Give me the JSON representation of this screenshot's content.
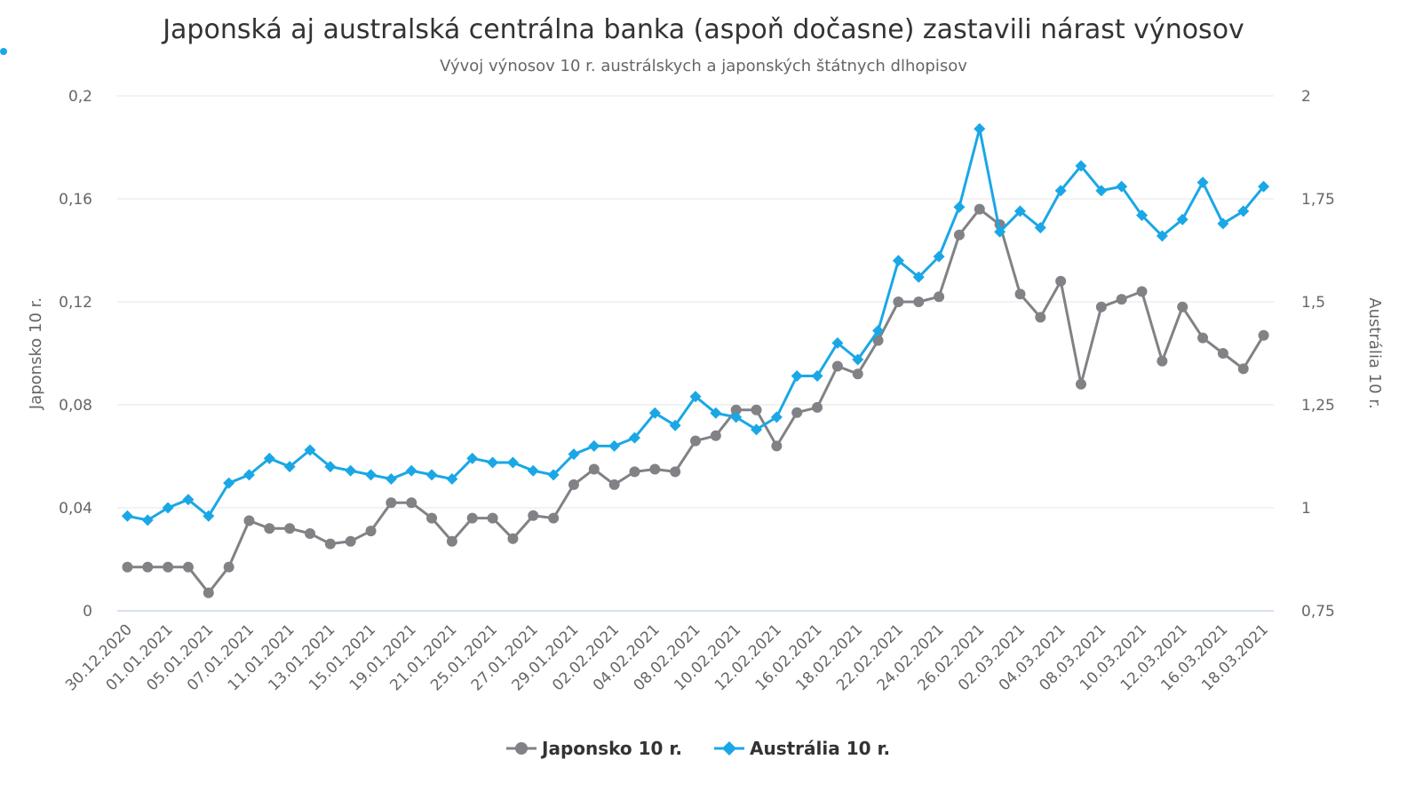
{
  "chart_data": {
    "type": "line",
    "title": "Japonská aj australská centrálna banka (aspoň dočasne) zastavili nárast výnosov",
    "subtitle": "Vývoj výnosov 10 r. austrálskych a japonských štátnych dlhopisov",
    "y_left": {
      "label": "Japonsko 10 r.",
      "range": [
        0,
        0.2
      ],
      "ticks": [
        0,
        0.04,
        0.08,
        0.12,
        0.16,
        0.2
      ],
      "tick_labels": [
        "0",
        "0,04",
        "0,08",
        "0,12",
        "0,16",
        "0,2"
      ]
    },
    "y_right": {
      "label": "Austrália 10 r.",
      "range": [
        0.75,
        2
      ],
      "ticks": [
        0.75,
        1,
        1.25,
        1.5,
        1.75,
        2
      ],
      "tick_labels": [
        "0,75",
        "1",
        "1,25",
        "1,5",
        "1,75",
        "2"
      ]
    },
    "x_tick_labels": [
      "30.12.2020",
      "01.01.2021",
      "05.01.2021",
      "07.01.2021",
      "11.01.2021",
      "13.01.2021",
      "15.01.2021",
      "19.01.2021",
      "21.01.2021",
      "25.01.2021",
      "27.01.2021",
      "29.01.2021",
      "02.02.2021",
      "04.02.2021",
      "08.02.2021",
      "10.02.2021",
      "12.02.2021",
      "16.02.2021",
      "18.02.2021",
      "22.02.2021",
      "24.02.2021",
      "26.02.2021",
      "02.03.2021",
      "04.03.2021",
      "08.03.2021",
      "10.03.2021",
      "12.03.2021",
      "16.03.2021",
      "18.03.2021"
    ],
    "grid": true,
    "legend_position": "bottom-center",
    "series": [
      {
        "name": "Japonsko 10 r.",
        "axis": "left",
        "color": "#808285",
        "marker": "circle",
        "values": [
          0.017,
          0.017,
          0.017,
          0.017,
          0.007,
          0.017,
          0.035,
          0.032,
          0.032,
          0.03,
          0.026,
          0.027,
          0.031,
          0.042,
          0.042,
          0.036,
          0.027,
          0.036,
          0.036,
          0.028,
          0.037,
          0.036,
          0.049,
          0.055,
          0.049,
          0.054,
          0.055,
          0.054,
          0.066,
          0.068,
          0.078,
          0.078,
          0.064,
          0.077,
          0.079,
          0.095,
          0.092,
          0.105,
          0.12,
          0.12,
          0.122,
          0.146,
          0.156,
          0.15,
          0.123,
          0.114,
          0.128,
          0.088,
          0.118,
          0.121,
          0.124,
          0.097,
          0.118,
          0.106,
          0.1,
          0.094,
          0.107
        ]
      },
      {
        "name": "Austrália 10 r.",
        "axis": "right",
        "color": "#1aa7e6",
        "marker": "diamond",
        "values": [
          0.98,
          0.97,
          1.0,
          1.02,
          0.98,
          1.06,
          1.08,
          1.12,
          1.1,
          1.14,
          1.1,
          1.09,
          1.08,
          1.07,
          1.09,
          1.08,
          1.07,
          1.12,
          1.11,
          1.11,
          1.09,
          1.08,
          1.13,
          1.15,
          1.15,
          1.17,
          1.23,
          1.2,
          1.27,
          1.23,
          1.22,
          1.19,
          1.22,
          1.32,
          1.32,
          1.4,
          1.36,
          1.43,
          1.6,
          1.56,
          1.61,
          1.73,
          1.92,
          1.67,
          1.72,
          1.68,
          1.77,
          1.83,
          1.77,
          1.78,
          1.71,
          1.66,
          1.7,
          1.79,
          1.69,
          1.72,
          1.78
        ]
      }
    ]
  }
}
